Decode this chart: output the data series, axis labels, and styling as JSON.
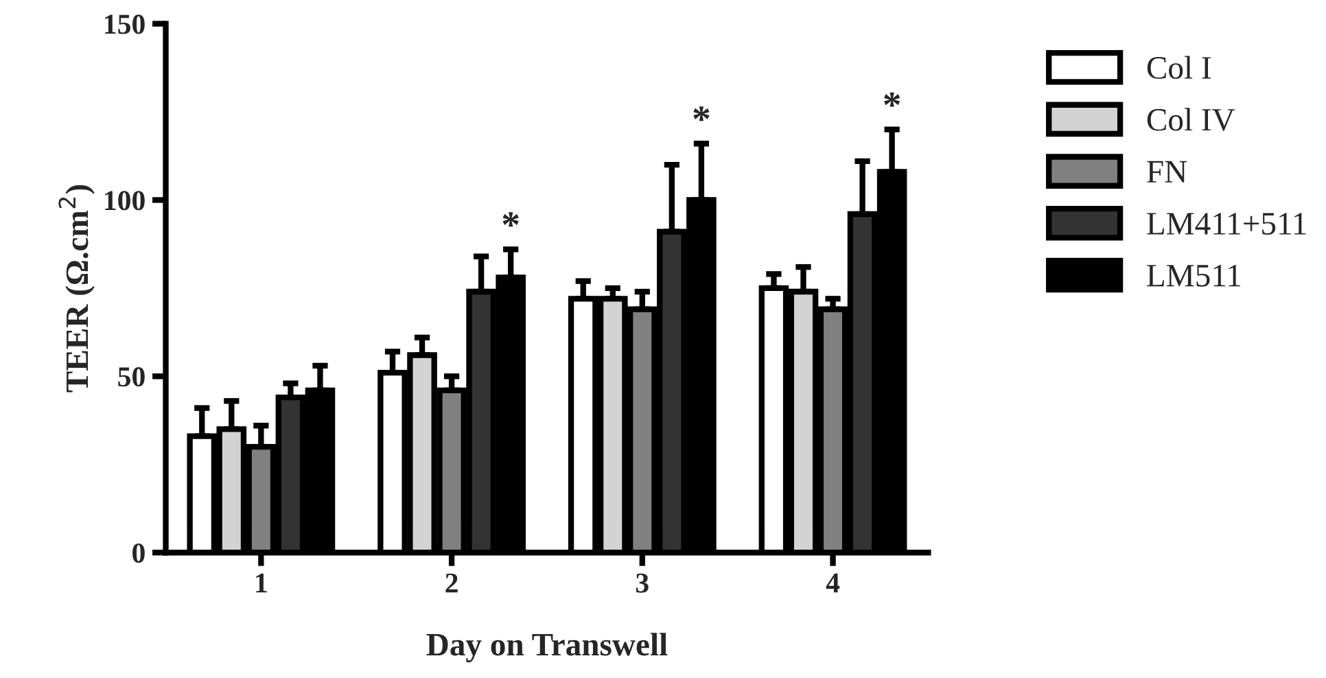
{
  "chart_data": {
    "type": "bar",
    "xlabel": "Day on Transwell",
    "ylabel": "TEER (Ω.cm$^{2}$)",
    "categories": [
      "1",
      "2",
      "3",
      "4"
    ],
    "series": [
      {
        "name": "Col I",
        "color": "#ffffff",
        "values": [
          33,
          51,
          72,
          75
        ],
        "errors": [
          [
            33,
            41
          ],
          [
            51,
            57
          ],
          [
            72,
            77
          ],
          [
            75,
            79
          ]
        ]
      },
      {
        "name": "Col IV",
        "color": "#d3d3d3",
        "values": [
          35,
          56,
          72,
          74
        ],
        "errors": [
          [
            35,
            43
          ],
          [
            56,
            61
          ],
          [
            72,
            75
          ],
          [
            74,
            81
          ]
        ]
      },
      {
        "name": "FN",
        "color": "#808080",
        "values": [
          30,
          46,
          69,
          69
        ],
        "errors": [
          [
            30,
            36
          ],
          [
            46,
            50
          ],
          [
            69,
            74
          ],
          [
            69,
            72
          ]
        ]
      },
      {
        "name": "LM411+511",
        "color": "#333333",
        "values": [
          44,
          74,
          91,
          96
        ],
        "errors": [
          [
            44,
            48
          ],
          [
            74,
            84
          ],
          [
            91,
            110
          ],
          [
            96,
            111
          ]
        ]
      },
      {
        "name": "LM511",
        "color": "#000000",
        "values": [
          46,
          78,
          100,
          108
        ],
        "errors": [
          [
            46,
            53
          ],
          [
            78,
            86
          ],
          [
            100,
            116
          ],
          [
            108,
            120
          ]
        ]
      }
    ],
    "ylim": [
      0,
      150
    ],
    "yticks": [
      0,
      50,
      100,
      150
    ],
    "grid": false,
    "legend": "right",
    "annotations": [
      "*",
      "*",
      "*"
    ]
  }
}
